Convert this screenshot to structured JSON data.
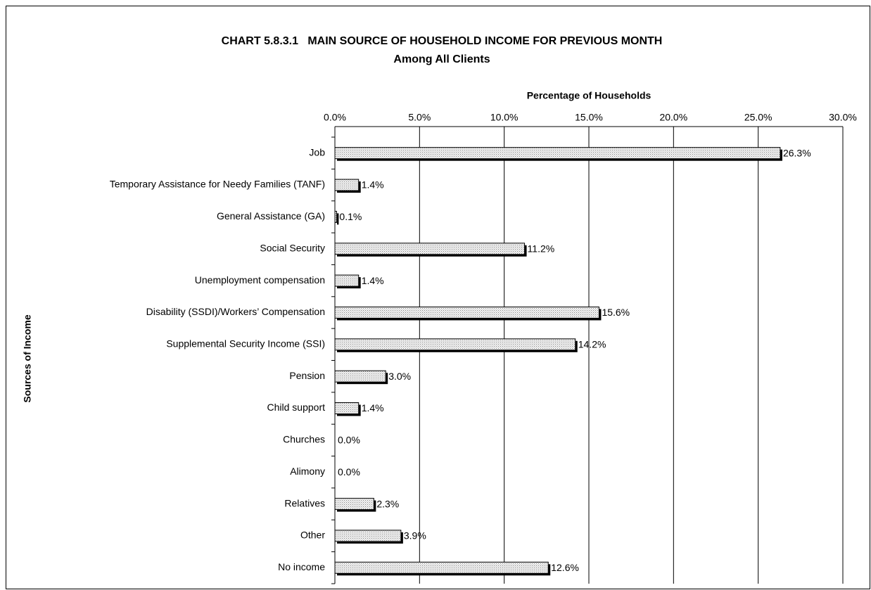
{
  "chart_data": {
    "type": "bar",
    "orientation": "horizontal",
    "title": "CHART 5.8.3.1   MAIN SOURCE OF HOUSEHOLD INCOME FOR PREVIOUS MONTH",
    "subtitle": "Among All Clients",
    "x_label": "Percentage of Households",
    "y_label": "Sources of Income",
    "categories": [
      "Job",
      "Temporary Assistance for Needy Families (TANF)",
      "General Assistance (GA)",
      "Social Security",
      "Unemployment compensation",
      "Disability (SSDI)/Workers’ Compensation",
      "Supplemental Security Income (SSI)",
      "Pension",
      "Child support",
      "Churches",
      "Alimony",
      "Relatives",
      "Other",
      "No income"
    ],
    "values": [
      26.3,
      1.4,
      0.1,
      11.2,
      1.4,
      15.6,
      14.2,
      3.0,
      1.4,
      0.0,
      0.0,
      2.3,
      3.9,
      12.6
    ],
    "value_labels": [
      "26.3%",
      "1.4%",
      "0.1%",
      "11.2%",
      "1.4%",
      "15.6%",
      "14.2%",
      "3.0%",
      "1.4%",
      "0.0%",
      "0.0%",
      "2.3%",
      "3.9%",
      "12.6%"
    ],
    "color": "#d0d0d0",
    "xlim": [
      0,
      30
    ],
    "xticks": [
      {
        "value": 0,
        "label": "0.0%"
      },
      {
        "value": 5,
        "label": "5.0%"
      },
      {
        "value": 10,
        "label": "10.0%"
      },
      {
        "value": 15,
        "label": "15.0%"
      },
      {
        "value": 20,
        "label": "20.0%"
      },
      {
        "value": 25,
        "label": "25.0%"
      },
      {
        "value": 30,
        "label": "30.0%"
      }
    ],
    "grid": true
  }
}
